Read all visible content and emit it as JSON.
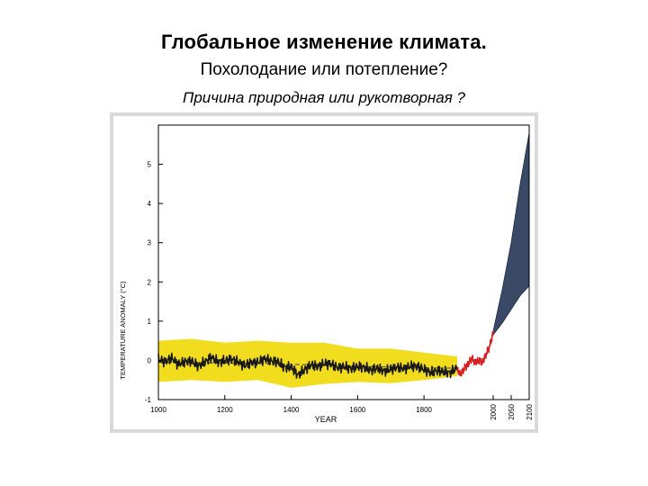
{
  "header": {
    "title": "Глобальное изменение климата.",
    "subtitle": "Похолодание или потепление?",
    "question": "Причина природная или рукотворная ?"
  },
  "chart_data": {
    "type": "line",
    "title": "",
    "xlabel": "YEAR",
    "ylabel": "TEMPERATURE ANOMALY (°C)",
    "ylim": [
      -1,
      6
    ],
    "yticks": [
      -1,
      0,
      1,
      2,
      3,
      4,
      5
    ],
    "xticks_historic": [
      1000,
      1200,
      1400,
      1600,
      1800
    ],
    "xticks_projection": [
      2000,
      2050,
      2100
    ],
    "grid": false,
    "legend": "none",
    "series": [
      {
        "kind": "reconstruction",
        "color": "#1a1a1a",
        "x": [
          1000,
          1020,
          1040,
          1060,
          1080,
          1100,
          1120,
          1140,
          1160,
          1180,
          1200,
          1220,
          1240,
          1260,
          1280,
          1300,
          1320,
          1340,
          1360,
          1380,
          1400,
          1420,
          1440,
          1460,
          1480,
          1500,
          1520,
          1540,
          1560,
          1580,
          1600,
          1620,
          1640,
          1660,
          1680,
          1700,
          1720,
          1740,
          1760,
          1780,
          1800,
          1820,
          1840,
          1860,
          1880,
          1900
        ],
        "y": [
          0.0,
          -0.08,
          0.03,
          -0.1,
          0.0,
          0.02,
          -0.12,
          -0.05,
          0.05,
          -0.08,
          -0.02,
          0.05,
          0.0,
          -0.1,
          -0.05,
          -0.08,
          0.0,
          -0.05,
          -0.03,
          -0.15,
          -0.12,
          -0.35,
          -0.25,
          -0.15,
          -0.2,
          -0.1,
          -0.08,
          -0.15,
          -0.12,
          -0.2,
          -0.18,
          -0.22,
          -0.28,
          -0.2,
          -0.25,
          -0.18,
          -0.15,
          -0.22,
          -0.18,
          -0.2,
          -0.25,
          -0.3,
          -0.22,
          -0.25,
          -0.3,
          -0.2
        ]
      },
      {
        "kind": "uncertainty-band",
        "color": "#f2dc1e",
        "x": [
          1000,
          1100,
          1200,
          1300,
          1400,
          1500,
          1600,
          1700,
          1800,
          1900
        ],
        "lower": [
          -0.55,
          -0.5,
          -0.55,
          -0.5,
          -0.7,
          -0.6,
          -0.55,
          -0.58,
          -0.5,
          -0.4
        ],
        "upper": [
          0.5,
          0.55,
          0.45,
          0.5,
          0.45,
          0.45,
          0.3,
          0.3,
          0.2,
          0.1
        ]
      },
      {
        "kind": "long-term-mean",
        "color": "#444444",
        "x": [
          1000,
          1100,
          1200,
          1300,
          1400,
          1500,
          1600,
          1700,
          1800,
          1900
        ],
        "y": [
          -0.05,
          -0.06,
          -0.07,
          -0.08,
          -0.1,
          -0.12,
          -0.15,
          -0.17,
          -0.19,
          -0.2
        ]
      },
      {
        "kind": "instrumental",
        "color": "#d42020",
        "x": [
          1900,
          1910,
          1920,
          1930,
          1940,
          1950,
          1960,
          1970,
          1980,
          1990,
          2000
        ],
        "y": [
          -0.25,
          -0.35,
          -0.2,
          -0.1,
          0.05,
          -0.05,
          0.0,
          -0.05,
          0.15,
          0.35,
          0.7
        ]
      },
      {
        "kind": "projection-range",
        "color": "#3a4a66",
        "x": [
          2000,
          2025,
          2050,
          2075,
          2100
        ],
        "lower": [
          0.65,
          0.95,
          1.3,
          1.65,
          1.9
        ],
        "upper": [
          0.75,
          1.8,
          3.0,
          4.5,
          5.8
        ]
      }
    ]
  }
}
